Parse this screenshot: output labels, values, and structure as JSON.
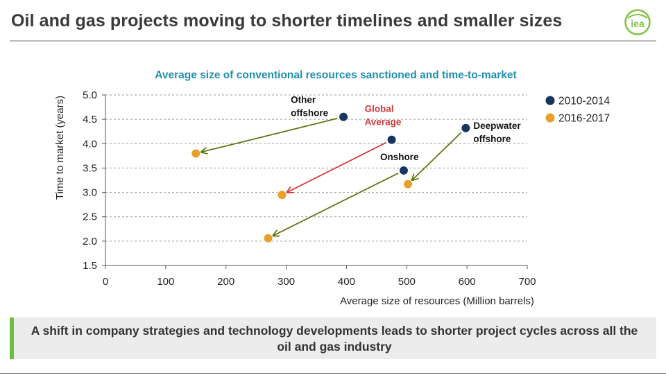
{
  "page": {
    "title": "Oil and gas projects moving to shorter timelines and smaller sizes",
    "logo_text": "iea",
    "bottom_text": "A shift in company strategies and technology developments leads to shorter project cycles across all the oil and gas industry"
  },
  "colors": {
    "title": "#3a3a3a",
    "chart_title": "#1f8fb0",
    "series_2010": "#17365d",
    "series_2016": "#e8a02a",
    "arrow_green": "#5a7a10",
    "arrow_red": "#d23a3a",
    "global_label": "#d23a3a",
    "accent_bar": "#6abf3d"
  },
  "chart_data": {
    "type": "scatter",
    "title": "Average size of conventional resources sanctioned and time-to-market",
    "xlabel": "Average size of resources (Million barrels)",
    "ylabel": "Time to market (years)",
    "xlim": [
      0,
      700
    ],
    "ylim": [
      1.5,
      5.0
    ],
    "xticks": [
      0,
      100,
      200,
      300,
      400,
      500,
      600,
      700
    ],
    "yticks": [
      "1.5",
      "2.0",
      "2.5",
      "3.0",
      "3.5",
      "4.0",
      "4.5",
      "5.0"
    ],
    "grid": "horizontal-dashed",
    "legend_position": "top-right",
    "series": [
      {
        "name": "2010-2014",
        "color": "#17365d",
        "points": [
          {
            "label": "Other offshore",
            "x": 395,
            "y": 4.55
          },
          {
            "label": "Global Average",
            "x": 475,
            "y": 4.08
          },
          {
            "label": "Deepwater offshore",
            "x": 598,
            "y": 4.32
          },
          {
            "label": "Onshore",
            "x": 495,
            "y": 3.45
          }
        ]
      },
      {
        "name": "2016-2017",
        "color": "#e8a02a",
        "points": [
          {
            "label": "Other offshore",
            "x": 150,
            "y": 3.8
          },
          {
            "label": "Global Average",
            "x": 293,
            "y": 2.95
          },
          {
            "label": "Deepwater offshore",
            "x": 502,
            "y": 3.17
          },
          {
            "label": "Onshore",
            "x": 270,
            "y": 2.06
          }
        ]
      }
    ],
    "annotations": [
      {
        "group": "Other offshore",
        "lines": [
          "Other",
          "offshore"
        ],
        "color": "#111111"
      },
      {
        "group": "Global Average",
        "lines": [
          "Global",
          "Average"
        ],
        "color": "#d23a3a"
      },
      {
        "group": "Deepwater offshore",
        "lines": [
          "Deepwater",
          "offshore"
        ],
        "color": "#111111"
      },
      {
        "group": "Onshore",
        "lines": [
          "Onshore"
        ],
        "color": "#111111"
      }
    ],
    "arrows": [
      {
        "group": "Other offshore",
        "color": "#5a7a10"
      },
      {
        "group": "Global Average",
        "color": "#d23a3a"
      },
      {
        "group": "Deepwater offshore",
        "color": "#5a7a10"
      },
      {
        "group": "Onshore",
        "color": "#5a7a10"
      }
    ]
  }
}
